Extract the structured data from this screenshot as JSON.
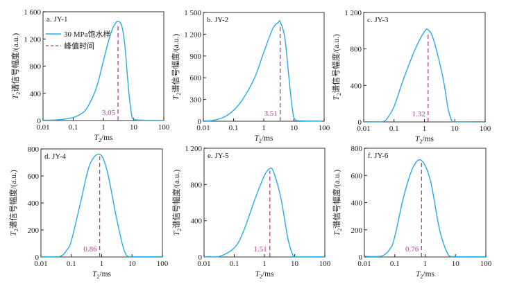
{
  "colors": {
    "curve": "#29abe2",
    "peak_line": "#b0418f",
    "frame": "#555555",
    "text": "#1a1a1a"
  },
  "chart_data": [
    {
      "type": "line",
      "title": "a. JY-1",
      "xlabel": "T2/ms",
      "ylabel": "T2谱信号幅度/(a.u.)",
      "xscale": "log",
      "xlim": [
        0.01,
        100
      ],
      "ylim": [
        0,
        1600
      ],
      "xticks": [
        "0.01",
        "0.1",
        "1",
        "10",
        "100"
      ],
      "yticks": [
        "0",
        "400",
        "800",
        "1 200",
        "1 600"
      ],
      "yticks_values": [
        0,
        400,
        800,
        1200,
        1600
      ],
      "legend": {
        "placement": "top-left",
        "entries": [
          "30 MPa饱水样",
          "峰值时间"
        ]
      },
      "series": [
        {
          "name": "30 MPa饱水样",
          "x": [
            0.01,
            0.03,
            0.1,
            0.2,
            0.3,
            0.5,
            0.7,
            1,
            1.5,
            2,
            2.5,
            3.05,
            4,
            5,
            6,
            7,
            8.5,
            10,
            20,
            100
          ],
          "y": [
            5,
            10,
            45,
            110,
            200,
            400,
            600,
            880,
            1180,
            1350,
            1430,
            1460,
            1400,
            1150,
            750,
            400,
            100,
            20,
            5,
            2
          ]
        }
      ],
      "peak": {
        "x": 3.05,
        "label": "3.05"
      }
    },
    {
      "type": "line",
      "title": "b. JY-2",
      "xlabel": "T2/ms",
      "ylabel": "T2谱信号幅度/(a.u.)",
      "xscale": "log",
      "xlim": [
        0.01,
        100
      ],
      "ylim": [
        0,
        1500
      ],
      "xticks": [
        "0.01",
        "0.1",
        "1",
        "10",
        "100"
      ],
      "yticks": [
        "0",
        "300",
        "600",
        "900",
        "1 200",
        "1 500"
      ],
      "yticks_values": [
        0,
        300,
        600,
        900,
        1200,
        1500
      ],
      "series": [
        {
          "name": "30 MPa饱水样",
          "x": [
            0.01,
            0.02,
            0.05,
            0.1,
            0.2,
            0.5,
            1,
            2,
            3,
            3.51,
            5,
            7,
            9,
            11,
            20,
            80
          ],
          "y": [
            5,
            10,
            60,
            150,
            300,
            600,
            950,
            1280,
            1360,
            1370,
            1150,
            550,
            150,
            20,
            5,
            2
          ]
        }
      ],
      "peak": {
        "x": 3.51,
        "label": "3.51"
      }
    },
    {
      "type": "line",
      "title": "c. JY-3",
      "xlabel": "T2/ms",
      "ylabel": "T2谱信号幅度/(a.u.)",
      "xscale": "log",
      "xlim": [
        0.01,
        100
      ],
      "ylim": [
        0,
        1200
      ],
      "xticks": [
        "0.01",
        "0.1",
        "1",
        "10",
        "100"
      ],
      "yticks": [
        "0",
        "400",
        "800",
        "1 200"
      ],
      "yticks_values": [
        0,
        400,
        800,
        1200
      ],
      "series": [
        {
          "name": "30 MPa饱水样",
          "x": [
            0.01,
            0.04,
            0.06,
            0.1,
            0.2,
            0.5,
            1,
            1.32,
            2,
            4,
            6,
            8,
            10,
            80
          ],
          "y": [
            2,
            2,
            40,
            170,
            460,
            800,
            990,
            1010,
            900,
            500,
            150,
            10,
            2,
            2
          ]
        }
      ],
      "peak": {
        "x": 1.32,
        "label": "1.32"
      }
    },
    {
      "type": "line",
      "title": "d. JY-4",
      "xlabel": "T2/ms",
      "ylabel": "T2谱信号幅度/(a.u.)",
      "xscale": "log",
      "xlim": [
        0.01,
        100
      ],
      "ylim": [
        0,
        800
      ],
      "xticks": [
        "0.01",
        "0.1",
        "1",
        "10",
        "100"
      ],
      "yticks": [
        "0",
        "200",
        "400",
        "600",
        "800"
      ],
      "yticks_values": [
        0,
        200,
        400,
        600,
        800
      ],
      "series": [
        {
          "name": "30 MPa饱水样",
          "x": [
            0.01,
            0.04,
            0.07,
            0.1,
            0.2,
            0.4,
            0.86,
            1.5,
            3,
            5,
            7,
            10,
            100
          ],
          "y": [
            2,
            2,
            50,
            120,
            400,
            680,
            760,
            640,
            300,
            80,
            5,
            2,
            2
          ]
        }
      ],
      "peak": {
        "x": 0.86,
        "label": "0.86"
      }
    },
    {
      "type": "line",
      "title": "e. JY-5",
      "xlabel": "T2/ms",
      "ylabel": "T2谱信号幅度/(a.u.)",
      "xscale": "log",
      "xlim": [
        0.01,
        100
      ],
      "ylim": [
        0,
        1200
      ],
      "xticks": [
        "0.01",
        "0.1",
        "1",
        "10",
        "100"
      ],
      "yticks": [
        "0",
        "400",
        "800",
        "1 200"
      ],
      "yticks_values": [
        0,
        400,
        800,
        1200
      ],
      "series": [
        {
          "name": "30 MPa饱水样",
          "x": [
            0.01,
            0.03,
            0.1,
            0.2,
            0.5,
            1,
            1.51,
            2,
            3.5,
            6,
            9,
            10,
            100
          ],
          "y": [
            2,
            2,
            100,
            280,
            650,
            900,
            975,
            940,
            650,
            200,
            10,
            2,
            2
          ]
        }
      ],
      "peak": {
        "x": 1.51,
        "label": "1.51"
      }
    },
    {
      "type": "line",
      "title": "f. JY-6",
      "xlabel": "T2/ms",
      "ylabel": "T2谱信号幅度/(a.u.)",
      "xscale": "log",
      "xlim": [
        0.01,
        100
      ],
      "ylim": [
        0,
        800
      ],
      "xticks": [
        "0.01",
        "0.1",
        "1",
        "10",
        "100"
      ],
      "yticks": [
        "0",
        "200",
        "400",
        "600",
        "800"
      ],
      "yticks_values": [
        0,
        200,
        400,
        600,
        800
      ],
      "series": [
        {
          "name": "30 MPa饱水样",
          "x": [
            0.01,
            0.035,
            0.07,
            0.1,
            0.2,
            0.4,
            0.76,
            1.5,
            3,
            6,
            10,
            100
          ],
          "y": [
            5,
            5,
            60,
            150,
            450,
            660,
            710,
            560,
            200,
            10,
            2,
            2
          ]
        }
      ],
      "peak": {
        "x": 0.76,
        "label": "0.76"
      }
    }
  ]
}
